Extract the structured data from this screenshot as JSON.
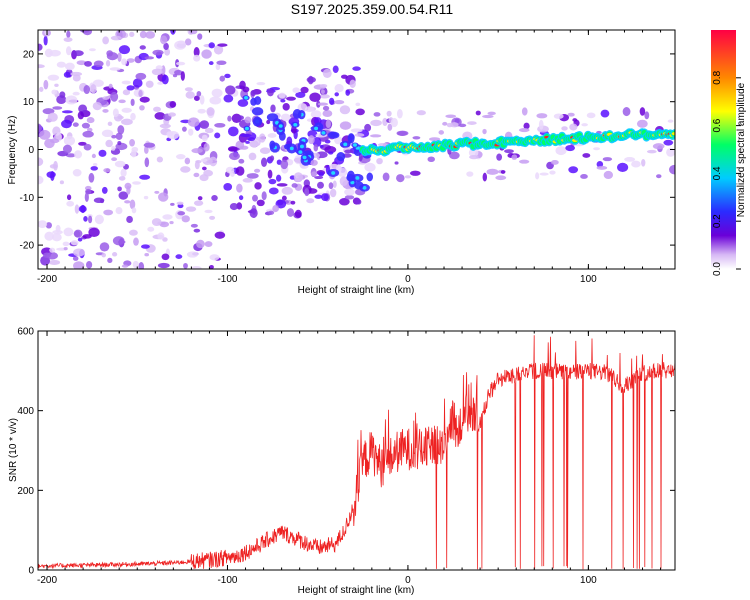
{
  "chart_data": [
    {
      "type": "heatmap",
      "title": "S197.2025.359.00.54.R11",
      "xlabel": "Height of straight line (km)",
      "ylabel": "Frequency (Hz)",
      "xlim": [
        -205,
        148
      ],
      "ylim": [
        -25,
        25
      ],
      "xticks": [
        -200,
        -100,
        0,
        100
      ],
      "yticks": [
        -20,
        -10,
        0,
        10,
        20
      ],
      "colorbar": {
        "label": "Normalized spectral amplitude",
        "range": [
          0,
          1
        ],
        "ticks": [
          "0.0",
          "0.2",
          "0.4",
          "0.6",
          "0.8"
        ],
        "colors": [
          "#ffffff",
          "#d7b8f5",
          "#6a00d8",
          "#2b2bff",
          "#00ccff",
          "#00ff66",
          "#ffff00",
          "#ff8800",
          "#ff0044"
        ]
      },
      "ridge": {
        "description_points": [
          [
            -25,
            -0.5
          ],
          [
            0,
            0.5
          ],
          [
            50,
            1.5
          ],
          [
            100,
            2.5
          ],
          [
            148,
            3.5
          ]
        ]
      }
    },
    {
      "type": "line",
      "title": "",
      "xlabel": "Height of straight line (km)",
      "ylabel": "SNR (10 * v/v)",
      "xlim": [
        -205,
        148
      ],
      "ylim": [
        0,
        600
      ],
      "xticks": [
        -200,
        -100,
        0,
        100
      ],
      "yticks": [
        0,
        200,
        400,
        600
      ],
      "line_color": "#ee2222",
      "series": [
        {
          "name": "SNR",
          "x": [
            -205,
            -180,
            -150,
            -130,
            -110,
            -95,
            -85,
            -78,
            -70,
            -60,
            -50,
            -40,
            -35,
            -30,
            -27,
            -25,
            -20,
            -15,
            -10,
            -5,
            0,
            5,
            10,
            15,
            20,
            25,
            27,
            30,
            35,
            40,
            45,
            50,
            60,
            70,
            80,
            90,
            100,
            110,
            120,
            130,
            140,
            148
          ],
          "values": [
            10,
            12,
            15,
            18,
            25,
            35,
            55,
            75,
            95,
            75,
            55,
            65,
            100,
            160,
            220,
            270,
            300,
            260,
            280,
            300,
            305,
            300,
            305,
            310,
            320,
            385,
            340,
            385,
            400,
            370,
            440,
            480,
            490,
            500,
            500,
            495,
            500,
            495,
            460,
            495,
            500,
            505
          ]
        }
      ]
    }
  ]
}
